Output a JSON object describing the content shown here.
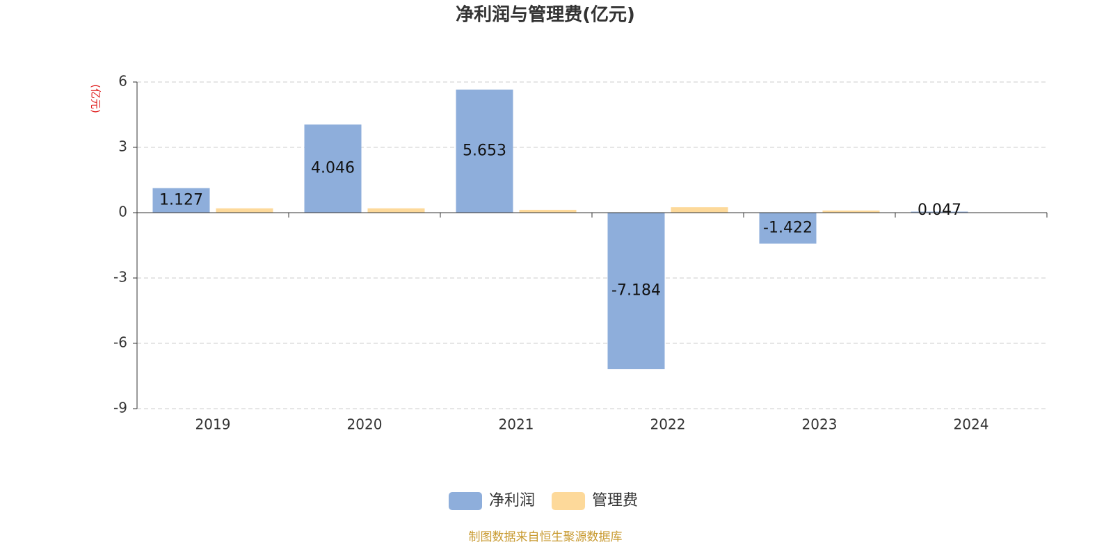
{
  "chart_data": {
    "type": "bar",
    "title": "净利润与管理费(亿元)",
    "y_axis_label": "(亿元)",
    "categories": [
      "2019",
      "2020",
      "2021",
      "2022",
      "2023",
      "2024"
    ],
    "series": [
      {
        "name": "净利润",
        "color": "#8eaedb",
        "values": [
          1.127,
          4.046,
          5.653,
          -7.184,
          -1.422,
          0.047
        ]
      },
      {
        "name": "管理费",
        "color": "#fdd99a",
        "values": [
          0.2,
          0.2,
          0.13,
          0.25,
          0.1,
          null
        ]
      }
    ],
    "show_value_labels_for": "净利润",
    "ylim": [
      -9,
      6
    ],
    "yticks": [
      -9,
      -6,
      -3,
      0,
      3,
      6
    ],
    "grid": true,
    "legend": "bottom",
    "source": "制图数据来自恒生聚源数据库"
  }
}
